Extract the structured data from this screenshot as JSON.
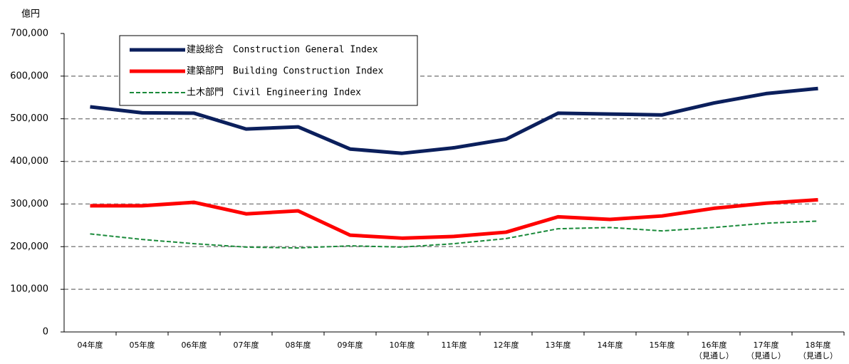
{
  "chart_data": {
    "type": "line",
    "y_label": "億円",
    "categories": [
      "04年度",
      "05年度",
      "06年度",
      "07年度",
      "08年度",
      "09年度",
      "10年度",
      "11年度",
      "12年度",
      "13年度",
      "14年度",
      "15年度",
      "16年度\n（見通し）",
      "17年度\n（見通し）",
      "18年度\n（見通し）"
    ],
    "series": [
      {
        "name": "建設総合　Construction General Index",
        "color": "#0b1f5c",
        "style": "solid",
        "values": [
          528000,
          514000,
          513000,
          476000,
          481000,
          429000,
          419000,
          432000,
          452000,
          513000,
          511000,
          509000,
          537000,
          559000,
          571000
        ]
      },
      {
        "name": "建築部門　Building Construction Index",
        "color": "#ff0000",
        "style": "solid",
        "values": [
          296000,
          296000,
          304000,
          277000,
          284000,
          227000,
          220000,
          224000,
          234000,
          270000,
          264000,
          272000,
          290000,
          302000,
          310000
        ]
      },
      {
        "name": "土木部門　Civil Engineering Index",
        "color": "#1a8a3a",
        "style": "dashed",
        "values": [
          230000,
          217000,
          207000,
          199000,
          197000,
          202000,
          199000,
          207000,
          219000,
          242000,
          245000,
          237000,
          245000,
          255000,
          260000
        ]
      }
    ],
    "ylim": [
      0,
      700000
    ],
    "yticks": [
      0,
      {
        "value": 100000,
        "label": "100,000"
      },
      {
        "value": 200000,
        "label": "200,000"
      },
      {
        "value": 300000,
        "label": "300,000"
      },
      {
        "value": 400000,
        "label": "400,000"
      },
      {
        "value": 500000,
        "label": "500,000"
      },
      {
        "value": 600000,
        "label": "600,000"
      },
      {
        "value": 700000,
        "label": "700,000"
      }
    ],
    "grid": true
  }
}
